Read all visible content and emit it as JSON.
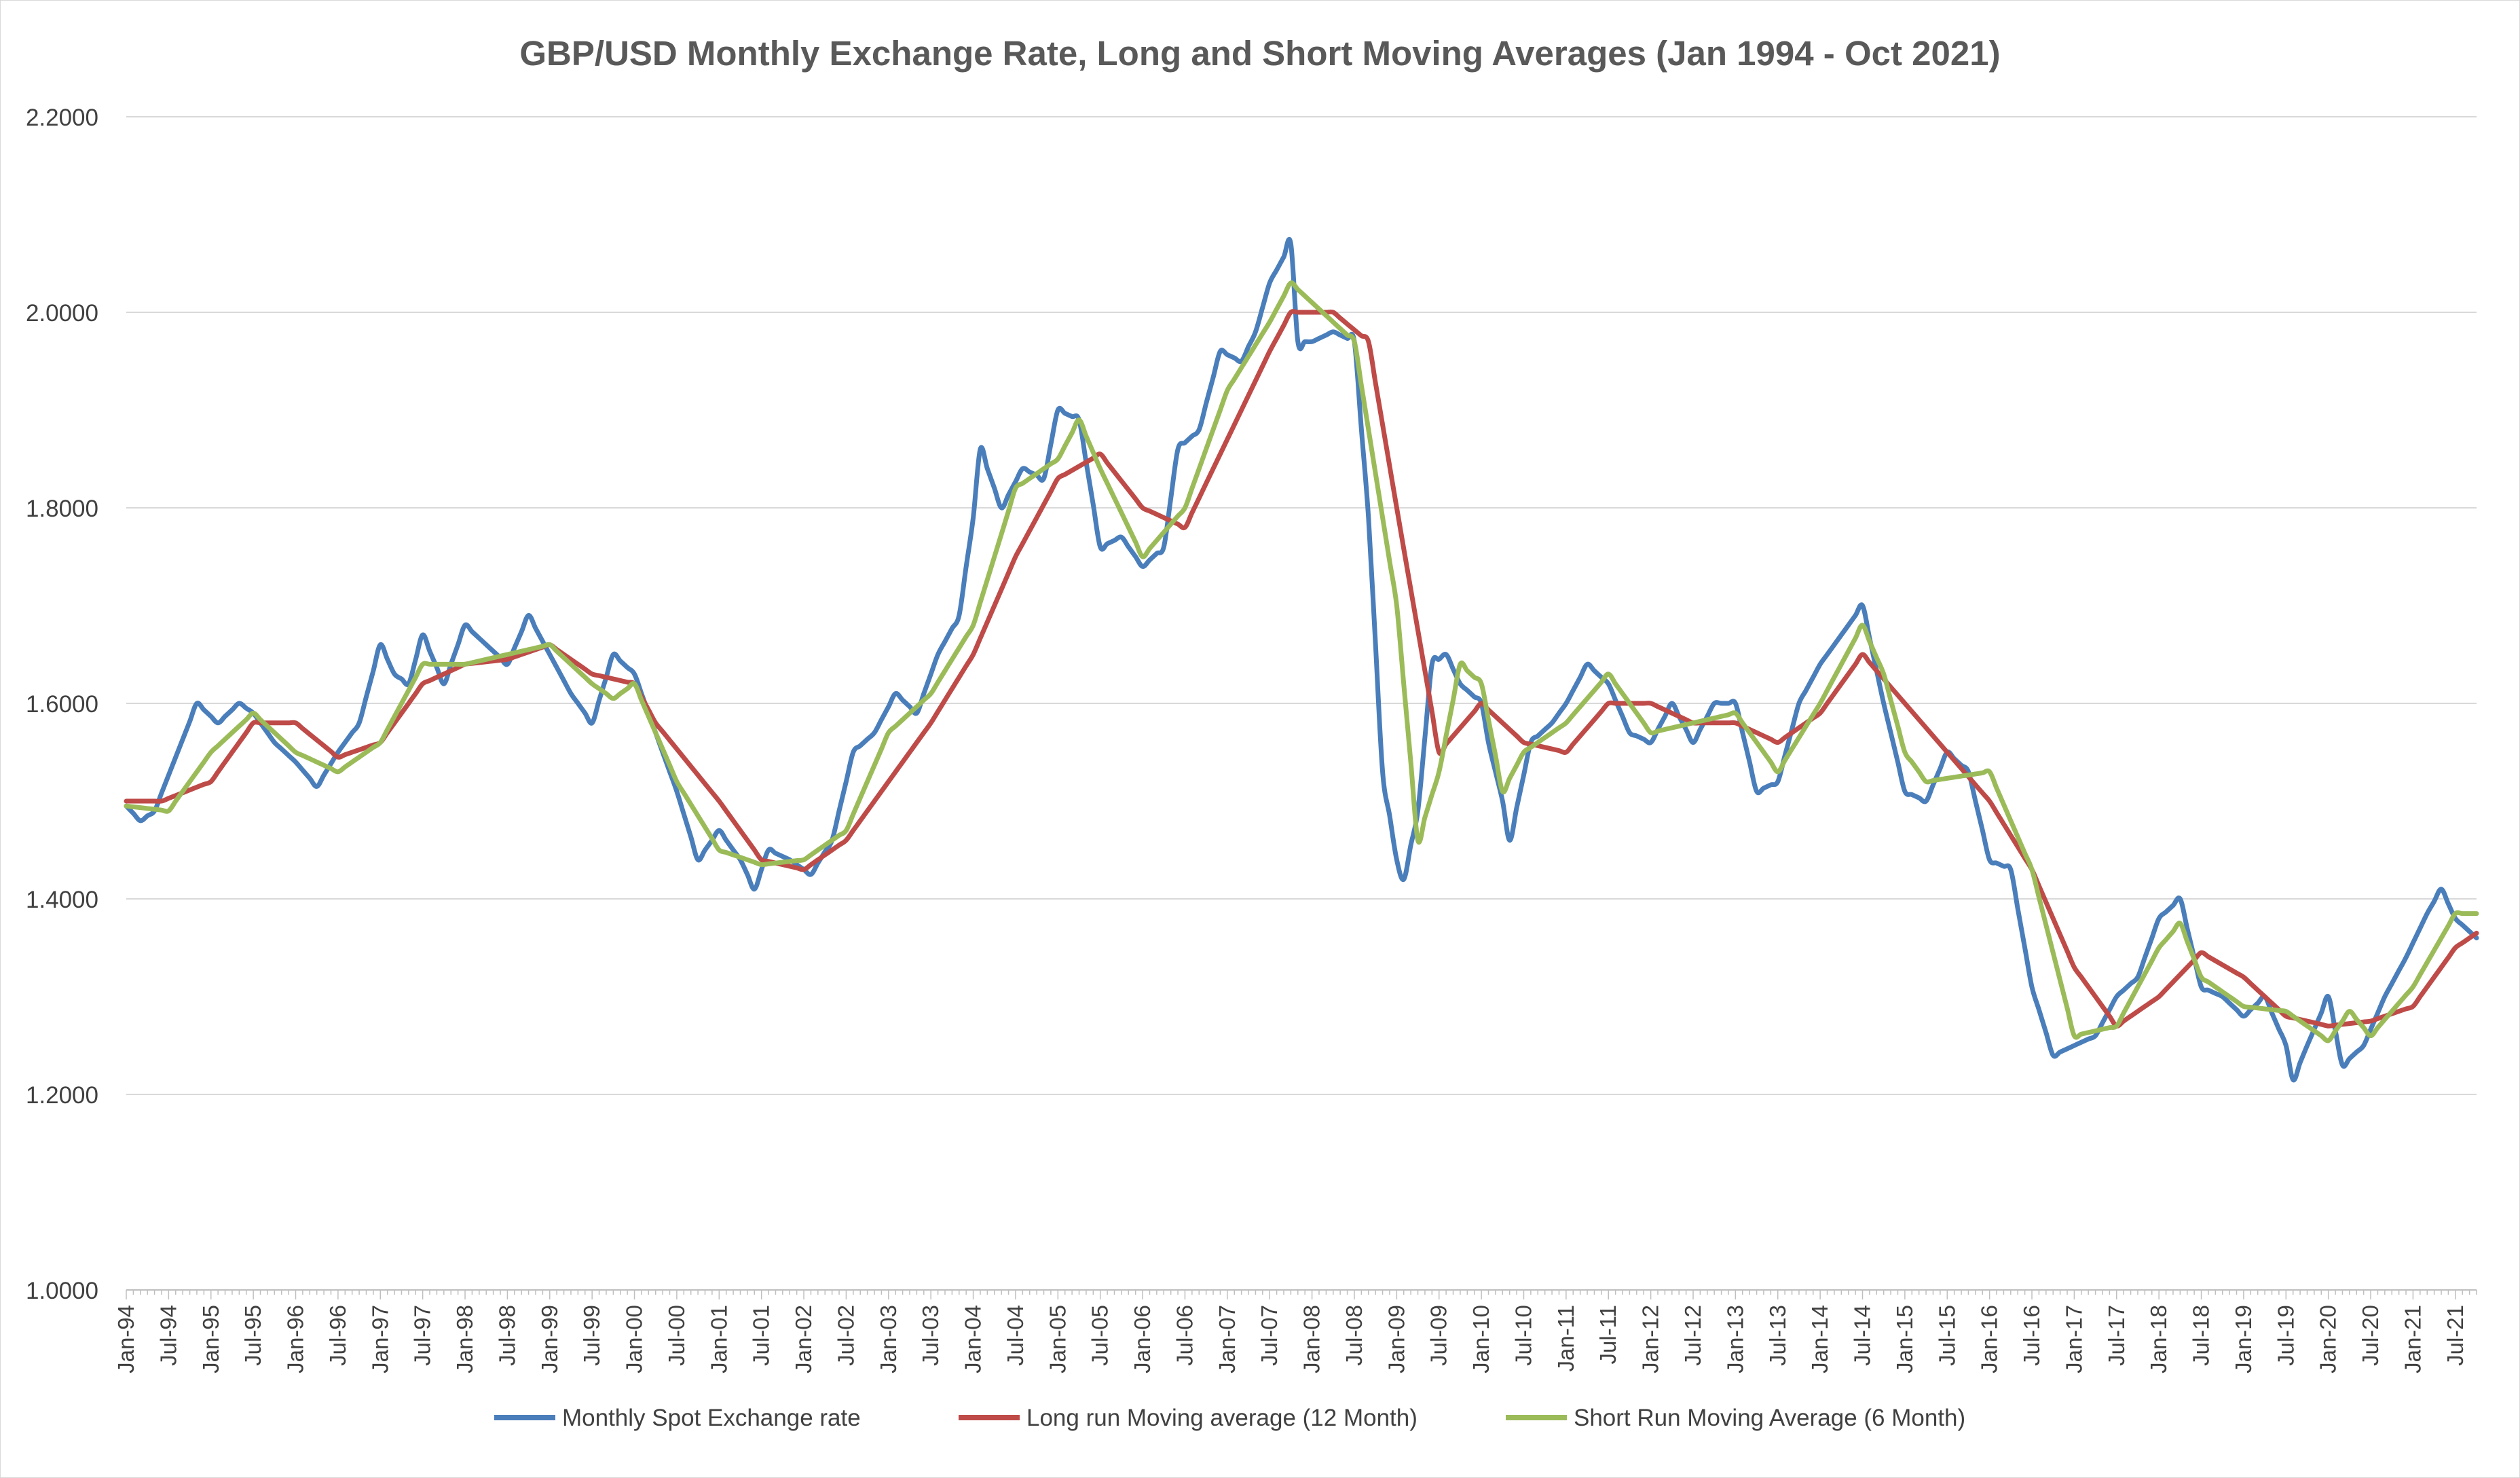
{
  "chart_data": {
    "type": "line",
    "title": "GBP/USD Monthly Exchange Rate, Long and Short Moving Averages (Jan 1994 - Oct 2021)",
    "xlabel": "",
    "ylabel": "",
    "ylim": [
      1.0,
      2.2
    ],
    "yticks": [
      "1.0000",
      "1.2000",
      "1.4000",
      "1.6000",
      "1.8000",
      "2.0000",
      "2.2000"
    ],
    "x_start": "Jan-94",
    "x_end": "Oct-21",
    "x_tick_labels": [
      "Jan-94",
      "Jul-94",
      "Jan-95",
      "Jul-95",
      "Jan-96",
      "Jul-96",
      "Jan-97",
      "Jul-97",
      "Jan-98",
      "Jul-98",
      "Jan-99",
      "Jul-99",
      "Jan-00",
      "Jul-00",
      "Jan-01",
      "Jul-01",
      "Jan-02",
      "Jul-02",
      "Jan-03",
      "Jul-03",
      "Jan-04",
      "Jul-04",
      "Jan-05",
      "Jul-05",
      "Jan-06",
      "Jul-06",
      "Jan-07",
      "Jul-07",
      "Jan-08",
      "Jul-08",
      "Jan-09",
      "Jul-09",
      "Jan-10",
      "Jul-10",
      "Jan-11",
      "Jul-11",
      "Jan-12",
      "Jul-12",
      "Jan-13",
      "Jul-13",
      "Jan-14",
      "Jul-14",
      "Jan-15",
      "Jul-15",
      "Jan-16",
      "Jul-16",
      "Jan-17",
      "Jul-17",
      "Jan-18",
      "Jul-18",
      "Jan-19",
      "Jul-19",
      "Jan-20",
      "Jul-20",
      "Jan-21",
      "Jul-21"
    ],
    "grid": true,
    "legend_position": "bottom",
    "series": [
      {
        "name": "Monthly Spot Exchange rate",
        "color": "#4a7ebb",
        "anchors": [
          [
            "Jan-94",
            1.495
          ],
          [
            "Mar-94",
            1.48
          ],
          [
            "May-94",
            1.49
          ],
          [
            "Aug-94",
            1.545
          ],
          [
            "Nov-94",
            1.6
          ],
          [
            "Feb-95",
            1.58
          ],
          [
            "May-95",
            1.6
          ],
          [
            "Jul-95",
            1.59
          ],
          [
            "Oct-95",
            1.56
          ],
          [
            "Jan-96",
            1.54
          ],
          [
            "Apr-96",
            1.515
          ],
          [
            "Jul-96",
            1.55
          ],
          [
            "Oct-96",
            1.58
          ],
          [
            "Jan-97",
            1.66
          ],
          [
            "Mar-97",
            1.63
          ],
          [
            "May-97",
            1.62
          ],
          [
            "Jul-97",
            1.67
          ],
          [
            "Oct-97",
            1.62
          ],
          [
            "Jan-98",
            1.68
          ],
          [
            "Apr-98",
            1.66
          ],
          [
            "Jul-98",
            1.64
          ],
          [
            "Oct-98",
            1.69
          ],
          [
            "Jan-99",
            1.65
          ],
          [
            "Apr-99",
            1.61
          ],
          [
            "Jul-99",
            1.58
          ],
          [
            "Oct-99",
            1.65
          ],
          [
            "Jan-00",
            1.63
          ],
          [
            "Apr-00",
            1.57
          ],
          [
            "Jul-00",
            1.51
          ],
          [
            "Oct-00",
            1.44
          ],
          [
            "Jan-01",
            1.47
          ],
          [
            "Apr-01",
            1.44
          ],
          [
            "Jun-01",
            1.41
          ],
          [
            "Aug-01",
            1.45
          ],
          [
            "Nov-01",
            1.44
          ],
          [
            "Feb-02",
            1.425
          ],
          [
            "May-02",
            1.46
          ],
          [
            "Aug-02",
            1.55
          ],
          [
            "Nov-02",
            1.57
          ],
          [
            "Feb-03",
            1.61
          ],
          [
            "May-03",
            1.59
          ],
          [
            "Aug-03",
            1.65
          ],
          [
            "Nov-03",
            1.69
          ],
          [
            "Jan-04",
            1.79
          ],
          [
            "Feb-04",
            1.86
          ],
          [
            "May-04",
            1.8
          ],
          [
            "Aug-04",
            1.84
          ],
          [
            "Nov-04",
            1.83
          ],
          [
            "Jan-05",
            1.9
          ],
          [
            "Apr-05",
            1.89
          ],
          [
            "Jul-05",
            1.76
          ],
          [
            "Oct-05",
            1.77
          ],
          [
            "Jan-06",
            1.74
          ],
          [
            "Apr-06",
            1.76
          ],
          [
            "Jun-06",
            1.86
          ],
          [
            "Sep-06",
            1.88
          ],
          [
            "Dec-06",
            1.96
          ],
          [
            "Mar-07",
            1.95
          ],
          [
            "May-07",
            1.98
          ],
          [
            "Jul-07",
            2.03
          ],
          [
            "Oct-07",
            2.07
          ],
          [
            "Nov-07",
            1.97
          ],
          [
            "Jan-08",
            1.97
          ],
          [
            "Apr-08",
            1.98
          ],
          [
            "Jul-08",
            1.97
          ],
          [
            "Sep-08",
            1.79
          ],
          [
            "Nov-08",
            1.53
          ],
          [
            "Jan-09",
            1.44
          ],
          [
            "Feb-09",
            1.42
          ],
          [
            "Apr-09",
            1.49
          ],
          [
            "Jun-09",
            1.64
          ],
          [
            "Aug-09",
            1.65
          ],
          [
            "Oct-09",
            1.62
          ],
          [
            "Jan-10",
            1.6
          ],
          [
            "Feb-10",
            1.56
          ],
          [
            "Apr-10",
            1.5
          ],
          [
            "May-10",
            1.46
          ],
          [
            "Aug-10",
            1.56
          ],
          [
            "Nov-10",
            1.58
          ],
          [
            "Jan-11",
            1.6
          ],
          [
            "Apr-11",
            1.64
          ],
          [
            "Jul-11",
            1.62
          ],
          [
            "Oct-11",
            1.57
          ],
          [
            "Jan-12",
            1.56
          ],
          [
            "Apr-12",
            1.6
          ],
          [
            "Jul-12",
            1.56
          ],
          [
            "Oct-12",
            1.6
          ],
          [
            "Jan-13",
            1.6
          ],
          [
            "Apr-13",
            1.51
          ],
          [
            "Jul-13",
            1.52
          ],
          [
            "Oct-13",
            1.6
          ],
          [
            "Jan-14",
            1.64
          ],
          [
            "Apr-14",
            1.67
          ],
          [
            "Jul-14",
            1.7
          ],
          [
            "Oct-14",
            1.6
          ],
          [
            "Jan-15",
            1.51
          ],
          [
            "Apr-15",
            1.5
          ],
          [
            "Jul-15",
            1.55
          ],
          [
            "Oct-15",
            1.53
          ],
          [
            "Jan-16",
            1.44
          ],
          [
            "Apr-16",
            1.43
          ],
          [
            "Jul-16",
            1.31
          ],
          [
            "Oct-16",
            1.24
          ],
          [
            "Jan-17",
            1.25
          ],
          [
            "Apr-17",
            1.26
          ],
          [
            "Jul-17",
            1.3
          ],
          [
            "Oct-17",
            1.32
          ],
          [
            "Jan-18",
            1.38
          ],
          [
            "Apr-18",
            1.4
          ],
          [
            "Jul-18",
            1.31
          ],
          [
            "Oct-18",
            1.3
          ],
          [
            "Jan-19",
            1.28
          ],
          [
            "Apr-19",
            1.3
          ],
          [
            "Jul-19",
            1.25
          ],
          [
            "Aug-19",
            1.215
          ],
          [
            "Oct-19",
            1.25
          ],
          [
            "Jan-20",
            1.3
          ],
          [
            "Mar-20",
            1.23
          ],
          [
            "Jun-20",
            1.25
          ],
          [
            "Sep-20",
            1.3
          ],
          [
            "Dec-20",
            1.34
          ],
          [
            "Mar-21",
            1.385
          ],
          [
            "May-21",
            1.41
          ],
          [
            "Jul-21",
            1.38
          ],
          [
            "Oct-21",
            1.36
          ]
        ]
      },
      {
        "name": "Long run Moving average (12 Month)",
        "color": "#be4b48",
        "anchors": [
          [
            "Jan-94",
            1.5
          ],
          [
            "Jun-94",
            1.5
          ],
          [
            "Jan-95",
            1.52
          ],
          [
            "Jul-95",
            1.58
          ],
          [
            "Jan-96",
            1.58
          ],
          [
            "Jul-96",
            1.545
          ],
          [
            "Jan-97",
            1.56
          ],
          [
            "Jul-97",
            1.62
          ],
          [
            "Jan-98",
            1.64
          ],
          [
            "Jul-98",
            1.645
          ],
          [
            "Jan-99",
            1.66
          ],
          [
            "Jul-99",
            1.63
          ],
          [
            "Jan-00",
            1.62
          ],
          [
            "Apr-00",
            1.58
          ],
          [
            "Jan-01",
            1.5
          ],
          [
            "Jul-01",
            1.44
          ],
          [
            "Jan-02",
            1.43
          ],
          [
            "Jul-02",
            1.46
          ],
          [
            "Jan-03",
            1.52
          ],
          [
            "Jul-03",
            1.58
          ],
          [
            "Jan-04",
            1.65
          ],
          [
            "Jul-04",
            1.75
          ],
          [
            "Jan-05",
            1.83
          ],
          [
            "Jul-05",
            1.855
          ],
          [
            "Jan-06",
            1.8
          ],
          [
            "Jul-06",
            1.78
          ],
          [
            "Jan-07",
            1.87
          ],
          [
            "Jul-07",
            1.96
          ],
          [
            "Oct-07",
            2.0
          ],
          [
            "Apr-08",
            2.0
          ],
          [
            "Sep-08",
            1.97
          ],
          [
            "Jan-09",
            1.8
          ],
          [
            "Jul-09",
            1.55
          ],
          [
            "Jan-10",
            1.6
          ],
          [
            "Jul-10",
            1.56
          ],
          [
            "Jan-11",
            1.55
          ],
          [
            "Jul-11",
            1.6
          ],
          [
            "Jan-12",
            1.6
          ],
          [
            "Jul-12",
            1.58
          ],
          [
            "Jan-13",
            1.58
          ],
          [
            "Jul-13",
            1.56
          ],
          [
            "Jan-14",
            1.59
          ],
          [
            "Jul-14",
            1.65
          ],
          [
            "Jan-15",
            1.6
          ],
          [
            "Jul-15",
            1.55
          ],
          [
            "Jan-16",
            1.5
          ],
          [
            "Jul-16",
            1.43
          ],
          [
            "Jan-17",
            1.33
          ],
          [
            "Jul-17",
            1.27
          ],
          [
            "Jan-18",
            1.3
          ],
          [
            "Jul-18",
            1.345
          ],
          [
            "Jan-19",
            1.32
          ],
          [
            "Jul-19",
            1.28
          ],
          [
            "Jan-20",
            1.27
          ],
          [
            "Jul-20",
            1.275
          ],
          [
            "Jan-21",
            1.29
          ],
          [
            "Jul-21",
            1.35
          ],
          [
            "Oct-21",
            1.365
          ]
        ]
      },
      {
        "name": "Short Run Moving Average (6 Month)",
        "color": "#9bbb59",
        "anchors": [
          [
            "Jan-94",
            1.495
          ],
          [
            "Jul-94",
            1.49
          ],
          [
            "Jan-95",
            1.55
          ],
          [
            "Jul-95",
            1.59
          ],
          [
            "Jan-96",
            1.55
          ],
          [
            "Jul-96",
            1.53
          ],
          [
            "Jan-97",
            1.56
          ],
          [
            "Jul-97",
            1.64
          ],
          [
            "Jan-98",
            1.64
          ],
          [
            "Jul-98",
            1.65
          ],
          [
            "Jan-99",
            1.66
          ],
          [
            "Jul-99",
            1.62
          ],
          [
            "Oct-99",
            1.605
          ],
          [
            "Jan-00",
            1.62
          ],
          [
            "Jul-00",
            1.52
          ],
          [
            "Jan-01",
            1.45
          ],
          [
            "Jul-01",
            1.435
          ],
          [
            "Jan-02",
            1.44
          ],
          [
            "Jul-02",
            1.47
          ],
          [
            "Jan-03",
            1.57
          ],
          [
            "Jul-03",
            1.61
          ],
          [
            "Jan-04",
            1.68
          ],
          [
            "Jul-04",
            1.82
          ],
          [
            "Jan-05",
            1.85
          ],
          [
            "Apr-05",
            1.89
          ],
          [
            "Jul-05",
            1.84
          ],
          [
            "Jan-06",
            1.75
          ],
          [
            "Jul-06",
            1.8
          ],
          [
            "Jan-07",
            1.92
          ],
          [
            "Jul-07",
            1.99
          ],
          [
            "Oct-07",
            2.03
          ],
          [
            "Jul-08",
            1.97
          ],
          [
            "Jan-09",
            1.7
          ],
          [
            "Apr-09",
            1.46
          ],
          [
            "Jul-09",
            1.53
          ],
          [
            "Oct-09",
            1.64
          ],
          [
            "Jan-10",
            1.62
          ],
          [
            "Apr-10",
            1.51
          ],
          [
            "Jul-10",
            1.55
          ],
          [
            "Jan-11",
            1.58
          ],
          [
            "Jul-11",
            1.63
          ],
          [
            "Jan-12",
            1.57
          ],
          [
            "Jul-12",
            1.58
          ],
          [
            "Jan-13",
            1.59
          ],
          [
            "Jul-13",
            1.53
          ],
          [
            "Jan-14",
            1.6
          ],
          [
            "Jul-14",
            1.68
          ],
          [
            "Oct-14",
            1.63
          ],
          [
            "Jan-15",
            1.55
          ],
          [
            "Apr-15",
            1.52
          ],
          [
            "Jan-16",
            1.53
          ],
          [
            "Jul-16",
            1.43
          ],
          [
            "Jan-17",
            1.26
          ],
          [
            "Jul-17",
            1.27
          ],
          [
            "Jan-18",
            1.35
          ],
          [
            "Apr-18",
            1.375
          ],
          [
            "Jul-18",
            1.32
          ],
          [
            "Jan-19",
            1.29
          ],
          [
            "Jul-19",
            1.285
          ],
          [
            "Jan-20",
            1.255
          ],
          [
            "Apr-20",
            1.285
          ],
          [
            "Jul-20",
            1.26
          ],
          [
            "Jan-21",
            1.31
          ],
          [
            "Jul-21",
            1.385
          ],
          [
            "Oct-21",
            1.385
          ]
        ]
      }
    ]
  }
}
